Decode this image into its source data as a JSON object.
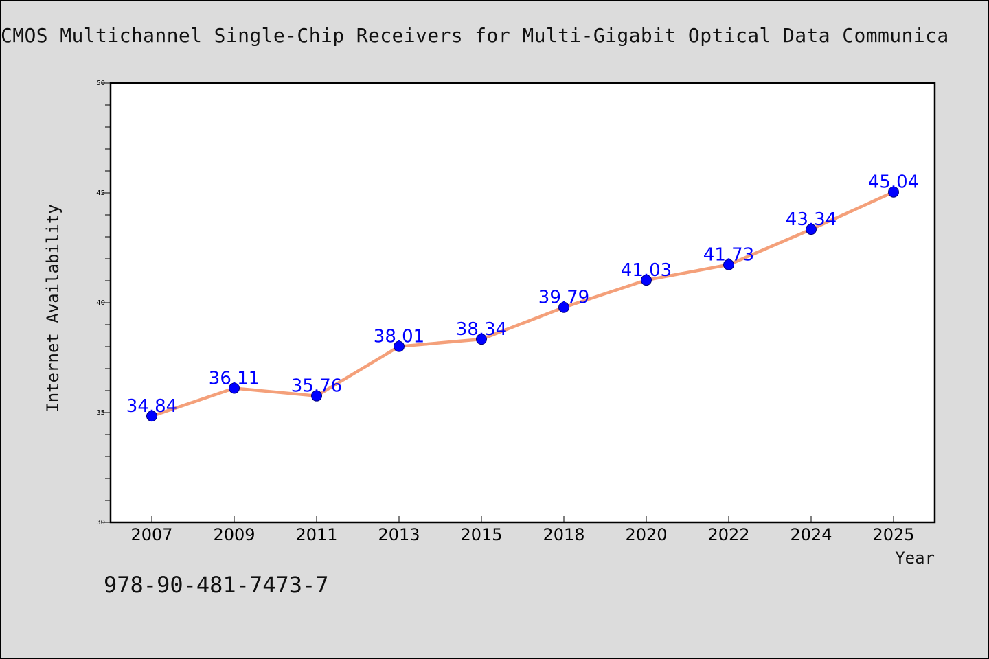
{
  "chart_data": {
    "type": "line",
    "title": "CMOS Multichannel Single-Chip Receivers for Multi-Gigabit Optical Data Communica",
    "xlabel": "Year",
    "ylabel": "Internet Availability",
    "categories": [
      "2007",
      "2009",
      "2011",
      "2013",
      "2015",
      "2018",
      "2020",
      "2022",
      "2024",
      "2025"
    ],
    "series": [
      {
        "values": [
          34.84,
          36.11,
          35.76,
          38.01,
          38.34,
          39.79,
          41.03,
          41.73,
          43.34,
          45.04
        ],
        "data_labels": [
          "34.84",
          "36.11",
          "35.76",
          "38.01",
          "38.34",
          "39.79",
          "41.03",
          "41.73",
          "43.34",
          "45.04"
        ]
      }
    ],
    "ylim": [
      30,
      50
    ],
    "yticks": [
      "30",
      "35",
      "40",
      "45",
      "50"
    ],
    "grid": false,
    "legend": "none",
    "line_color": "#f4a07a",
    "marker_color": "#0000ff",
    "label_color": "#0000ff"
  },
  "annotations": {
    "isbn": "978-90-481-7473-7"
  }
}
